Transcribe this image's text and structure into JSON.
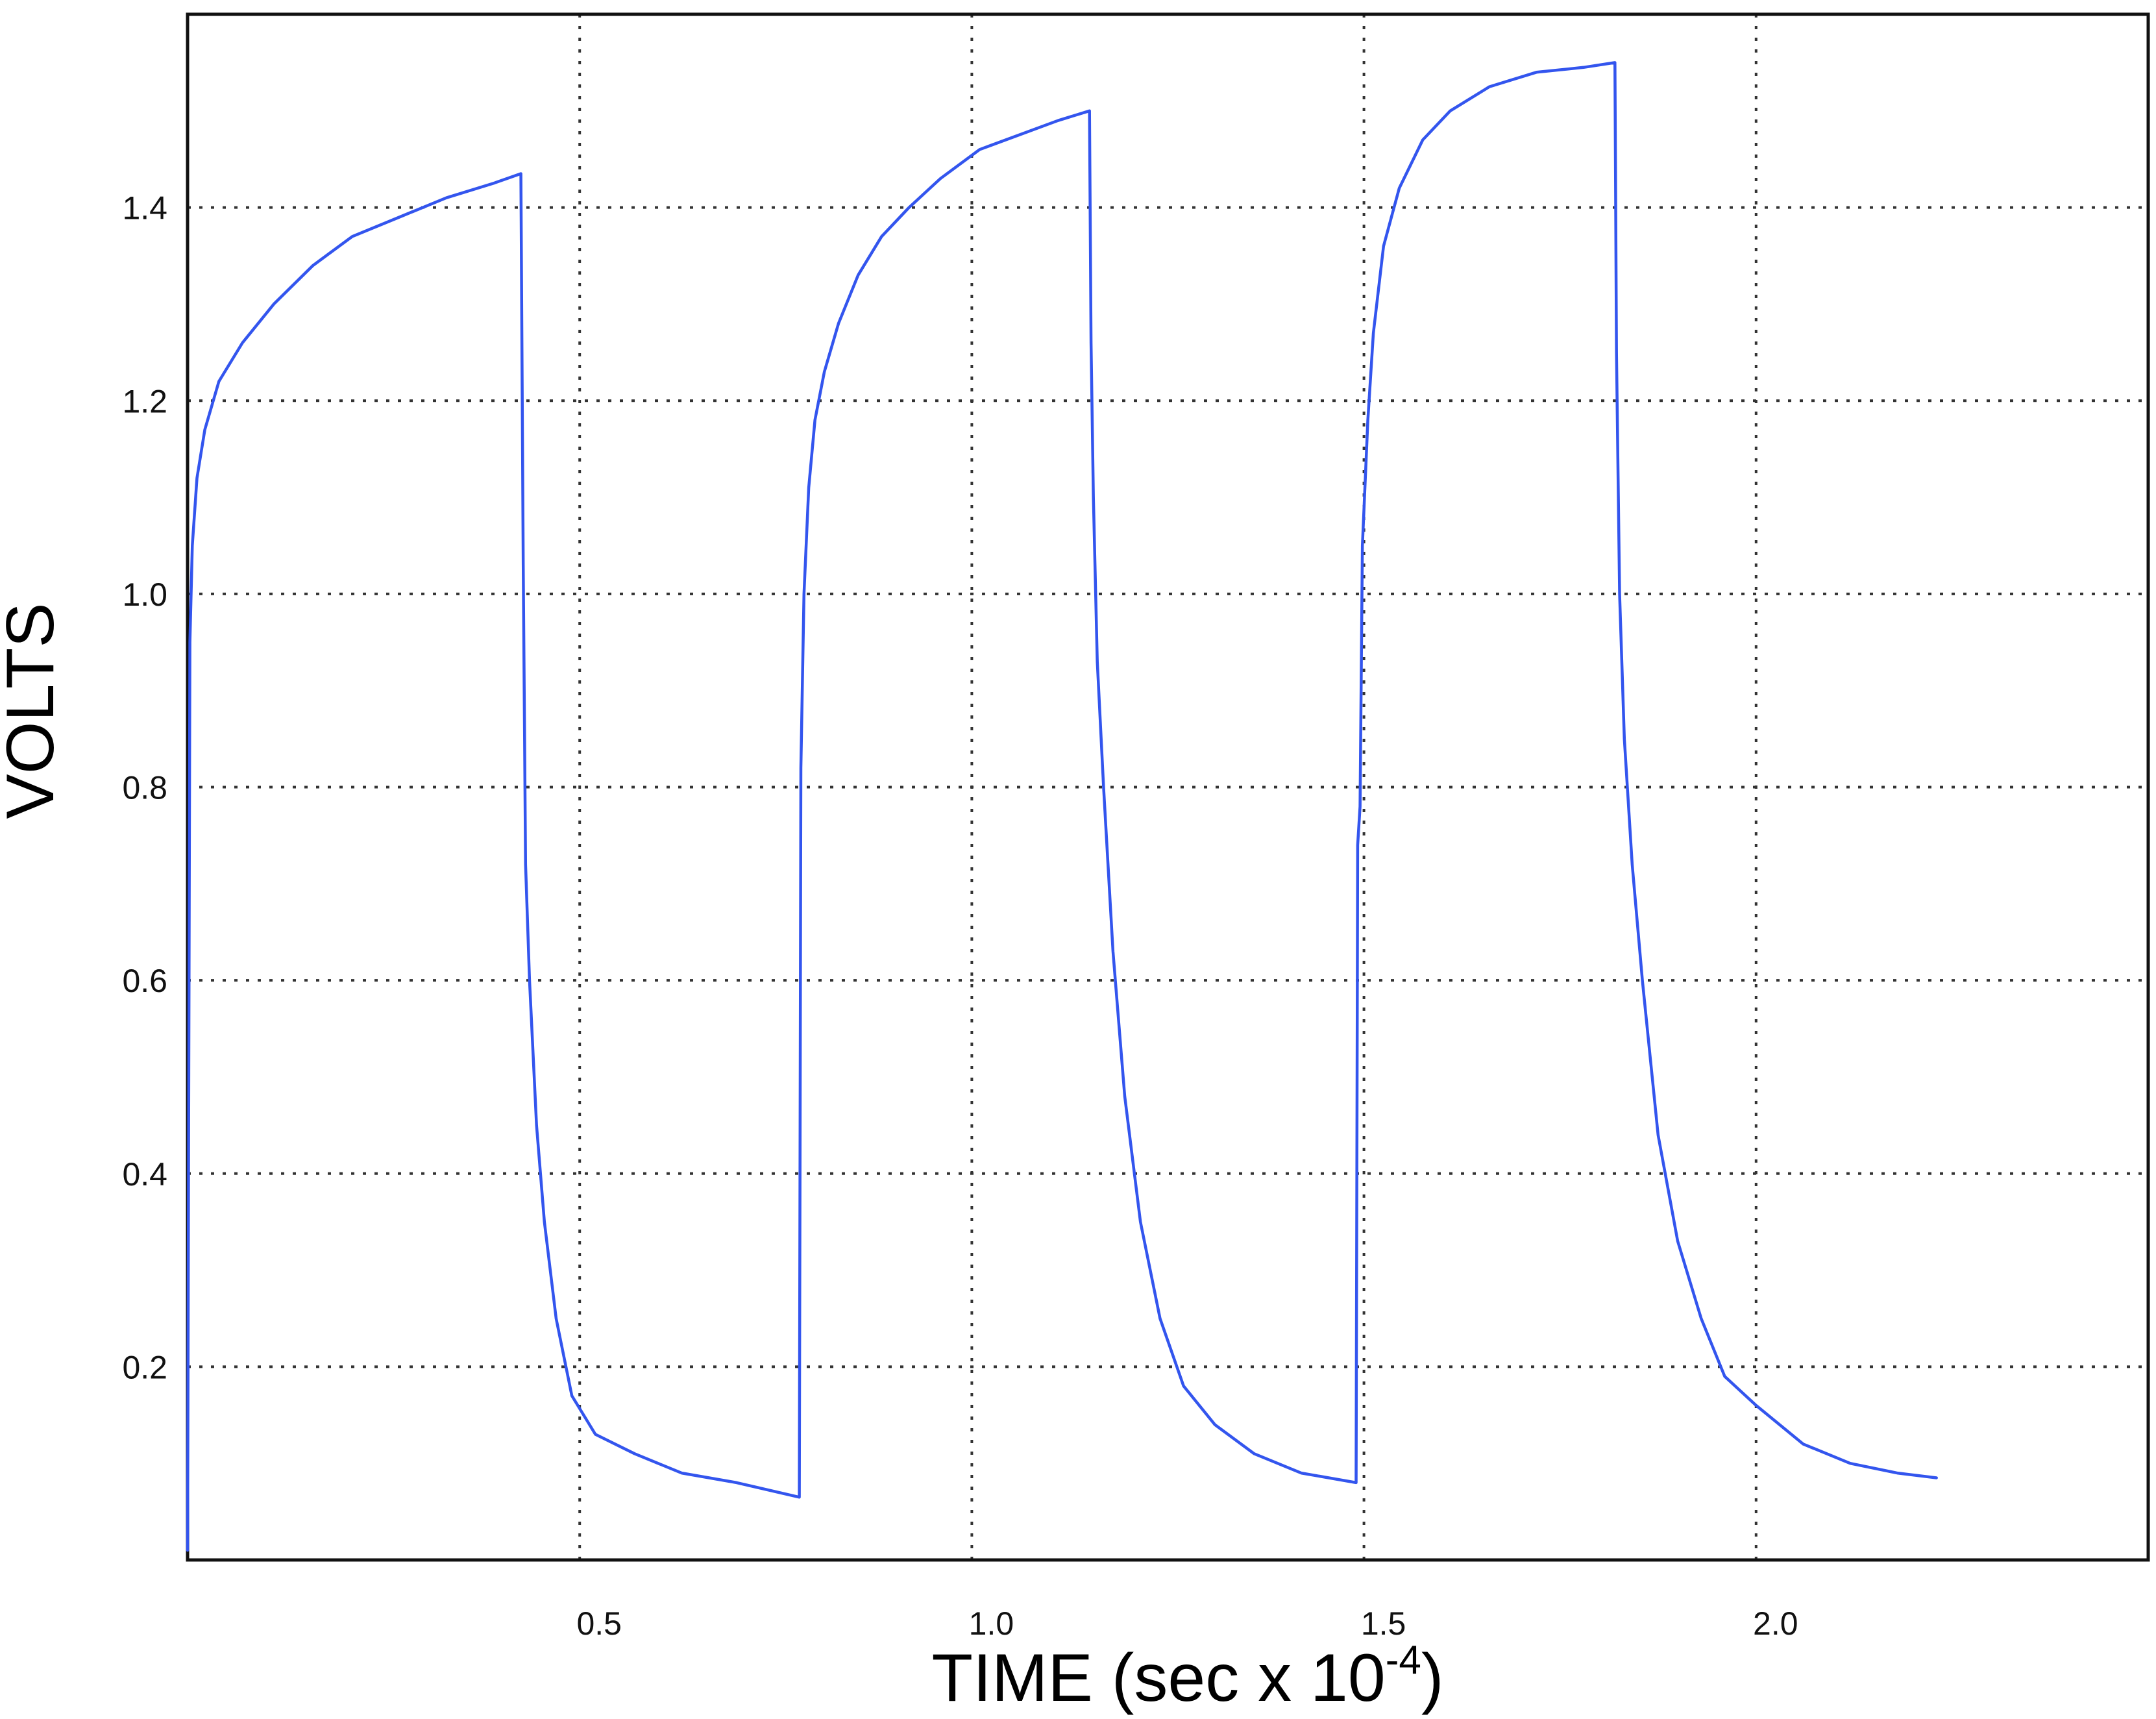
{
  "chart_data": {
    "type": "line",
    "xlabel": "TIME (sec x 10",
    "xlabel_exponent": "-4",
    "xlabel_close": ")",
    "ylabel": "VOLTS",
    "xlim": [
      0,
      2.5
    ],
    "ylim": [
      0,
      1.6
    ],
    "x_ticks": [
      0.5,
      1.0,
      1.5,
      2.0
    ],
    "x_tick_labels": [
      "0.5",
      "1.0",
      "1.5",
      "2.0"
    ],
    "y_ticks": [
      0.2,
      0.4,
      0.6,
      0.8,
      1.0,
      1.2,
      1.4
    ],
    "y_tick_labels": [
      "0.2",
      "0.4",
      "0.6",
      "0.8",
      "1.0",
      "1.2",
      "1.4"
    ],
    "grid": true,
    "grid_style": "dotted",
    "legend": "none",
    "series": [
      {
        "color": "#3355ee",
        "points": [
          [
            0.0,
            0.01
          ],
          [
            0.003,
            0.95
          ],
          [
            0.006,
            1.05
          ],
          [
            0.012,
            1.12
          ],
          [
            0.022,
            1.17
          ],
          [
            0.04,
            1.22
          ],
          [
            0.07,
            1.26
          ],
          [
            0.11,
            1.3
          ],
          [
            0.16,
            1.34
          ],
          [
            0.21,
            1.37
          ],
          [
            0.27,
            1.39
          ],
          [
            0.33,
            1.41
          ],
          [
            0.39,
            1.425
          ],
          [
            0.425,
            1.435
          ],
          [
            0.428,
            1.03
          ],
          [
            0.431,
            0.72
          ],
          [
            0.436,
            0.6
          ],
          [
            0.445,
            0.45
          ],
          [
            0.455,
            0.35
          ],
          [
            0.47,
            0.25
          ],
          [
            0.49,
            0.17
          ],
          [
            0.52,
            0.13
          ],
          [
            0.57,
            0.11
          ],
          [
            0.63,
            0.09
          ],
          [
            0.7,
            0.08
          ],
          [
            0.78,
            0.065
          ],
          [
            0.782,
            0.82
          ],
          [
            0.786,
            1.0
          ],
          [
            0.792,
            1.11
          ],
          [
            0.8,
            1.18
          ],
          [
            0.812,
            1.23
          ],
          [
            0.83,
            1.28
          ],
          [
            0.855,
            1.33
          ],
          [
            0.885,
            1.37
          ],
          [
            0.92,
            1.4
          ],
          [
            0.96,
            1.43
          ],
          [
            1.01,
            1.46
          ],
          [
            1.06,
            1.475
          ],
          [
            1.11,
            1.49
          ],
          [
            1.15,
            1.5
          ],
          [
            1.152,
            1.26
          ],
          [
            1.155,
            1.1
          ],
          [
            1.16,
            0.93
          ],
          [
            1.168,
            0.8
          ],
          [
            1.18,
            0.63
          ],
          [
            1.195,
            0.48
          ],
          [
            1.215,
            0.35
          ],
          [
            1.24,
            0.25
          ],
          [
            1.27,
            0.18
          ],
          [
            1.31,
            0.14
          ],
          [
            1.36,
            0.11
          ],
          [
            1.42,
            0.09
          ],
          [
            1.49,
            0.08
          ],
          [
            1.492,
            0.74
          ],
          [
            1.495,
            0.78
          ],
          [
            1.498,
            1.05
          ],
          [
            1.505,
            1.18
          ],
          [
            1.512,
            1.27
          ],
          [
            1.525,
            1.36
          ],
          [
            1.545,
            1.42
          ],
          [
            1.575,
            1.47
          ],
          [
            1.61,
            1.5
          ],
          [
            1.66,
            1.525
          ],
          [
            1.72,
            1.54
          ],
          [
            1.78,
            1.545
          ],
          [
            1.82,
            1.55
          ],
          [
            1.822,
            1.25
          ],
          [
            1.826,
            1.0
          ],
          [
            1.832,
            0.85
          ],
          [
            1.842,
            0.72
          ],
          [
            1.855,
            0.6
          ],
          [
            1.875,
            0.44
          ],
          [
            1.9,
            0.33
          ],
          [
            1.93,
            0.25
          ],
          [
            1.96,
            0.19
          ],
          [
            2.0,
            0.16
          ],
          [
            2.06,
            0.12
          ],
          [
            2.12,
            0.1
          ],
          [
            2.18,
            0.09
          ],
          [
            2.23,
            0.085
          ]
        ]
      }
    ]
  }
}
